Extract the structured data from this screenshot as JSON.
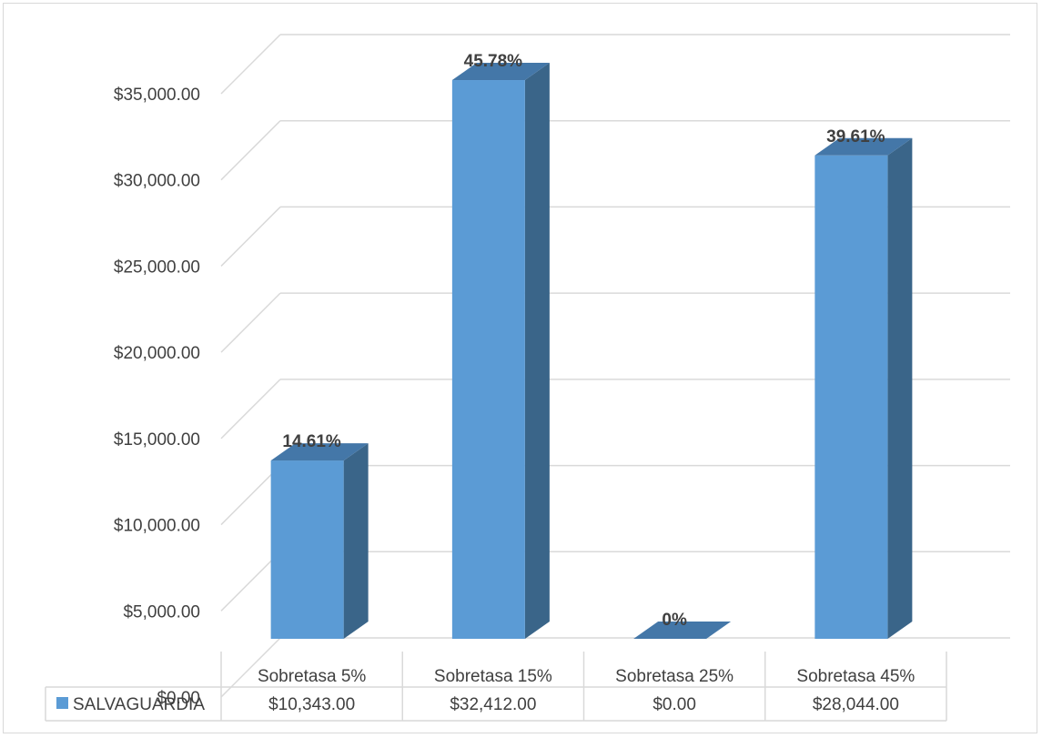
{
  "chart_data": {
    "type": "bar",
    "categories": [
      "Sobretasa 5%",
      "Sobretasa 15%",
      "Sobretasa 25%",
      "Sobretasa 45%"
    ],
    "series": [
      {
        "name": "SALVAGUARDIA",
        "values": [
          10343,
          32412,
          0,
          28044
        ],
        "data_labels": [
          "14.61%",
          "45.78%",
          "0%",
          "39.61%"
        ],
        "table_values": [
          "$10,343.00",
          "$32,412.00",
          "$0.00",
          "$28,044.00"
        ]
      }
    ],
    "ylim": [
      0,
      35000
    ],
    "yticks": [
      0,
      5000,
      10000,
      15000,
      20000,
      25000,
      30000,
      35000
    ],
    "ytick_labels": [
      "$0.00",
      "$5,000.00",
      "$10,000.00",
      "$15,000.00",
      "$20,000.00",
      "$25,000.00",
      "$30,000.00",
      "$35,000.00"
    ],
    "grid": true,
    "style": "3d-column",
    "data_table": true,
    "colors": {
      "front": "#5b9bd5",
      "side": "#3a6589",
      "top": "#4477a8",
      "grid": "#d9d9d9",
      "text": "#404040"
    }
  }
}
